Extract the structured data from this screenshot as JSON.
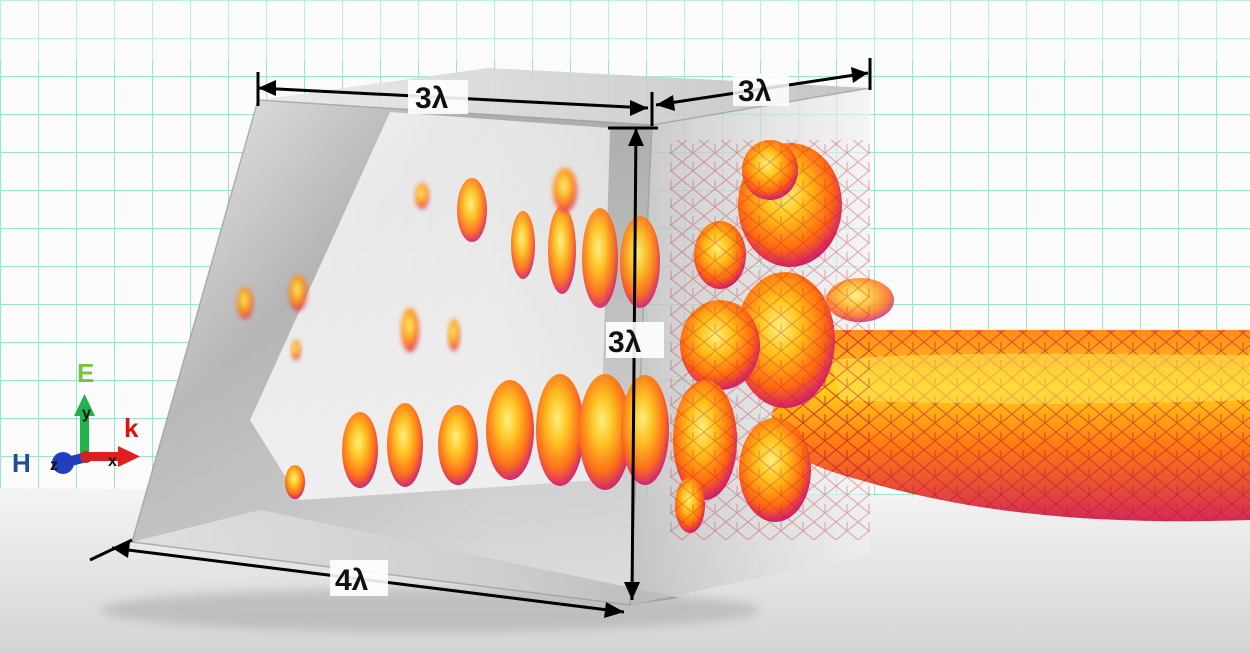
{
  "dimensions": {
    "top_width": "3λ",
    "top_depth": "3λ",
    "height": "3λ",
    "bottom_length": "4λ"
  },
  "field_labels": {
    "electric": "E",
    "magnetic": "H",
    "wavevector": "k"
  },
  "triad_labels": {
    "x": "x",
    "y": "y",
    "z": "z"
  },
  "colors": {
    "grid": "#8fe6c0",
    "electric": "#7cc242",
    "magnetic": "#1f4e99",
    "wavevector": "#e01010",
    "axis_x": "#e02020",
    "axis_y": "#22b14c",
    "axis_z": "#1f3fbf",
    "field_hot": "#ffd21a",
    "field_mid": "#ff6a10",
    "field_edge": "#d41f6a"
  },
  "icons": {
    "triad": "coordinate-axes-icon"
  }
}
